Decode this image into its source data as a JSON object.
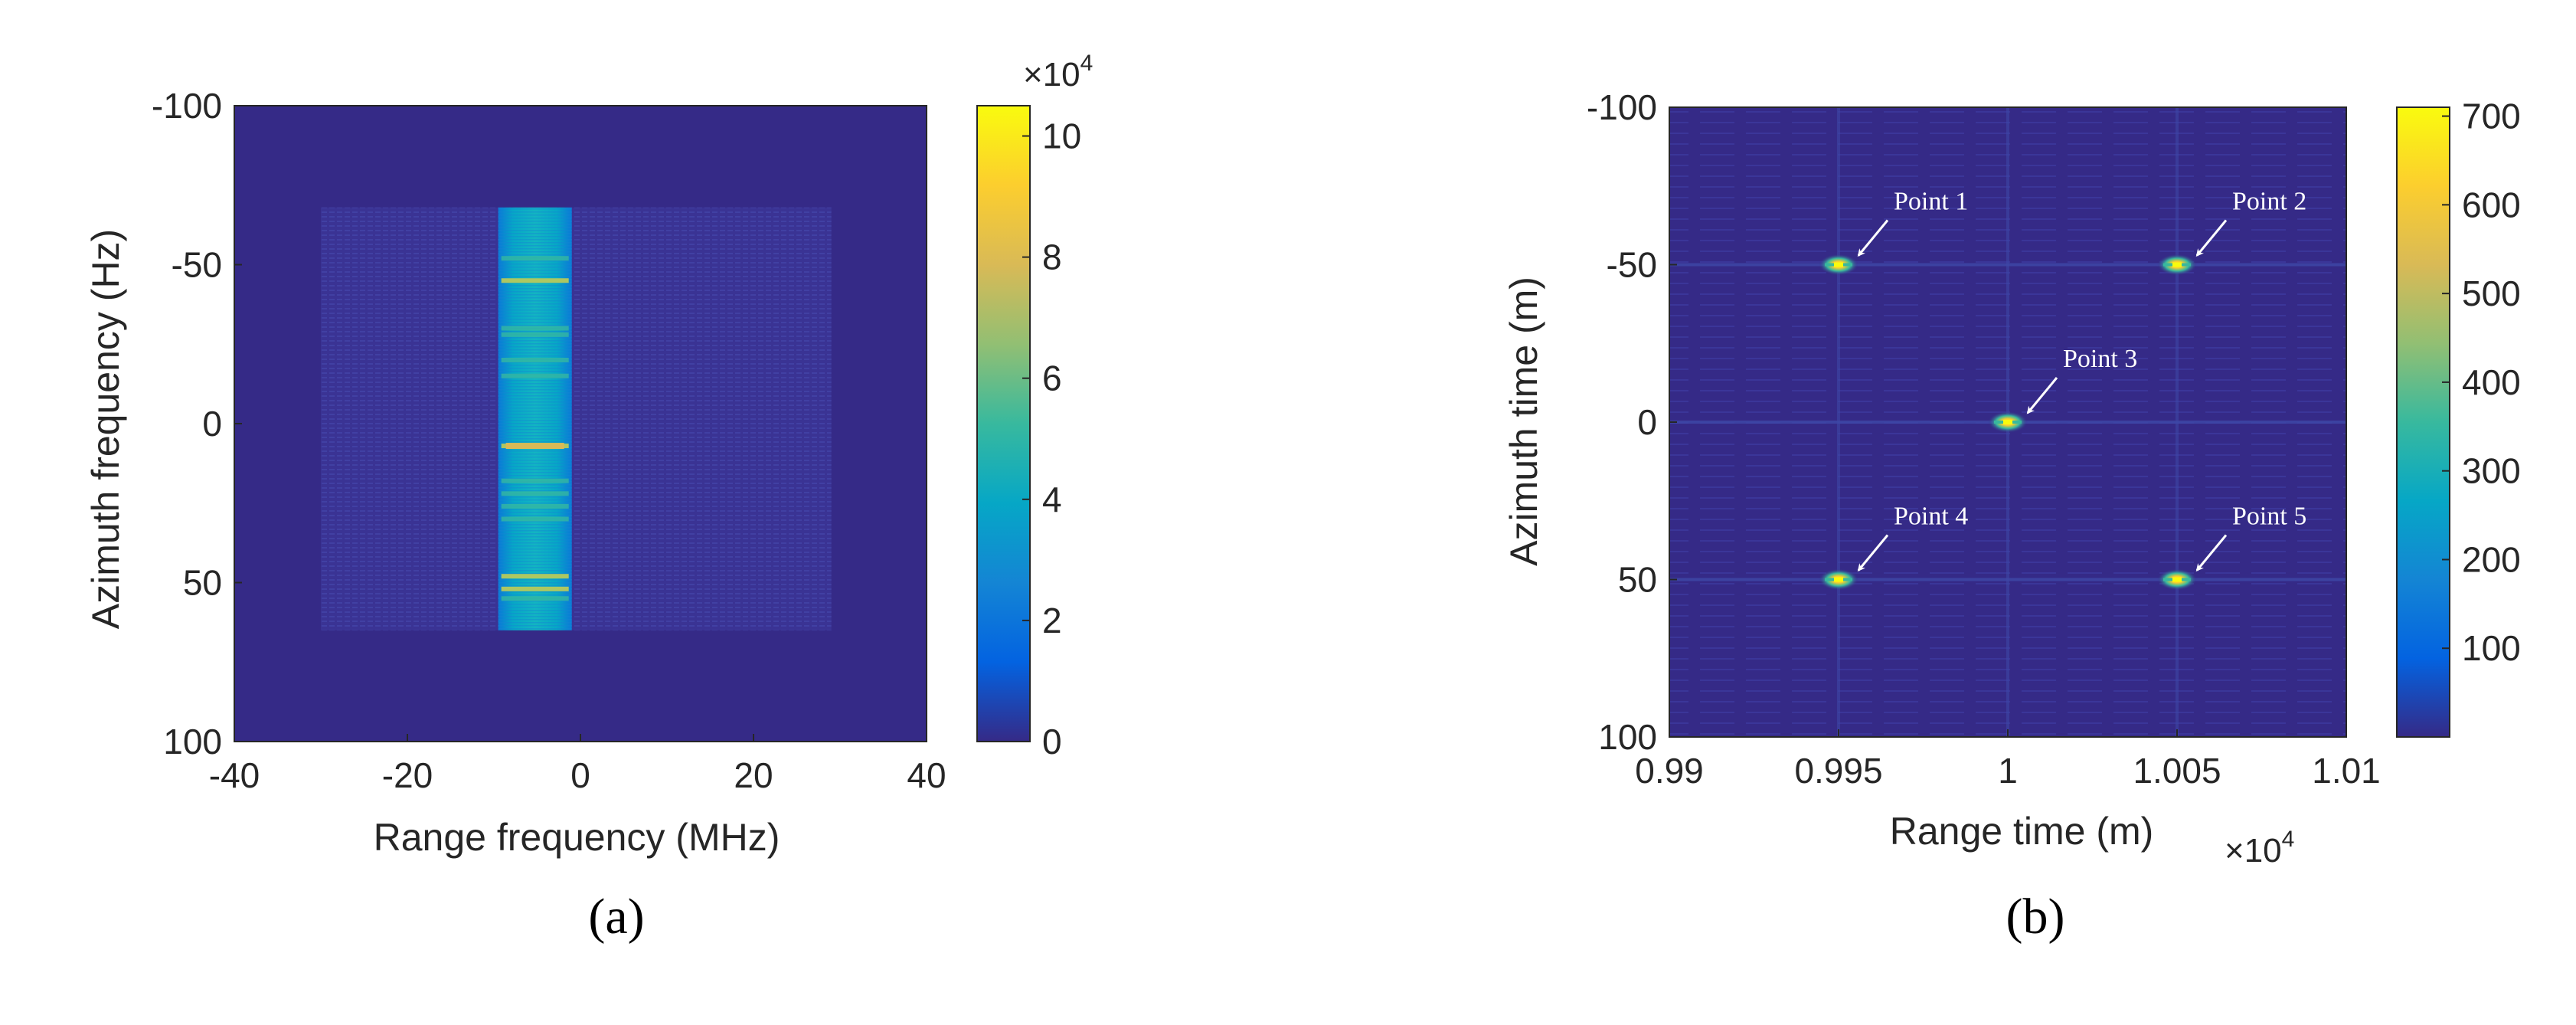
{
  "colors": {
    "background": "#352a87",
    "viridis_stops": [
      "#352a87",
      "#0363e1",
      "#1485d4",
      "#06a7c6",
      "#38b99e",
      "#92bf73",
      "#d9ba56",
      "#fcce2e",
      "#f9fb0e"
    ],
    "annotation": "#ffffff"
  },
  "chart_data": [
    {
      "type": "heatmap",
      "panel_label": "(a)",
      "xlabel": "Range frequency (MHz)",
      "ylabel": "Azimuth frequency (Hz)",
      "xlim": [
        -40,
        40
      ],
      "ylim": [
        -100,
        100
      ],
      "y_reversed": true,
      "xticks": [
        -40,
        -20,
        0,
        20,
        40
      ],
      "yticks": [
        -100,
        -50,
        0,
        50,
        100
      ],
      "xtick_labels": [
        "-40",
        "-20",
        "0",
        "20",
        "40"
      ],
      "ytick_labels": [
        "-100",
        "-50",
        "0",
        "50",
        "100"
      ],
      "colorbar": {
        "range": [
          0,
          10.5
        ],
        "ticks": [
          0,
          2,
          4,
          6,
          8,
          10
        ],
        "tick_labels": [
          "0",
          "2",
          "4",
          "6",
          "8",
          "10"
        ],
        "exponent_label": "×10",
        "exponent_power": "4"
      },
      "regions": [
        {
          "name": "spectrum-support",
          "x_range": [
            -30,
            29
          ],
          "y_range": [
            -68,
            65
          ],
          "value": 0.6
        },
        {
          "name": "spectrum-band",
          "x_range": [
            -9.5,
            -1
          ],
          "y_range": [
            -68,
            65
          ],
          "value": 3.8
        }
      ],
      "strong_lines_y": [
        -52,
        -45,
        -30,
        -28,
        -15,
        7,
        18,
        -20,
        22,
        26,
        30,
        48,
        52,
        55
      ],
      "peak_value": 10.5
    },
    {
      "type": "heatmap",
      "panel_label": "(b)",
      "xlabel": "Range time (m)",
      "ylabel": "Azimuth time (m)",
      "xlim": [
        0.99,
        1.01
      ],
      "ylim": [
        -100,
        100
      ],
      "y_reversed": true,
      "xticks": [
        0.99,
        0.995,
        1,
        1.005,
        1.01
      ],
      "yticks": [
        -100,
        -50,
        0,
        50,
        100
      ],
      "xtick_labels": [
        "0.99",
        "0.995",
        "1",
        "1.005",
        "1.01"
      ],
      "ytick_labels": [
        "-100",
        "-50",
        "0",
        "50",
        "100"
      ],
      "x_exponent_label": "×10",
      "x_exponent_power": "4",
      "colorbar": {
        "range": [
          0,
          710
        ],
        "ticks": [
          100,
          200,
          300,
          400,
          500,
          600,
          700
        ],
        "tick_labels": [
          "100",
          "200",
          "300",
          "400",
          "500",
          "600",
          "700"
        ]
      },
      "points": [
        {
          "label": "Point 1",
          "x": 0.995,
          "y": -50,
          "value": 700
        },
        {
          "label": "Point 2",
          "x": 1.005,
          "y": -50,
          "value": 700
        },
        {
          "label": "Point 3",
          "x": 1.0,
          "y": 0,
          "value": 700
        },
        {
          "label": "Point 4",
          "x": 0.995,
          "y": 50,
          "value": 700
        },
        {
          "label": "Point 5",
          "x": 1.005,
          "y": 50,
          "value": 700
        }
      ]
    }
  ]
}
